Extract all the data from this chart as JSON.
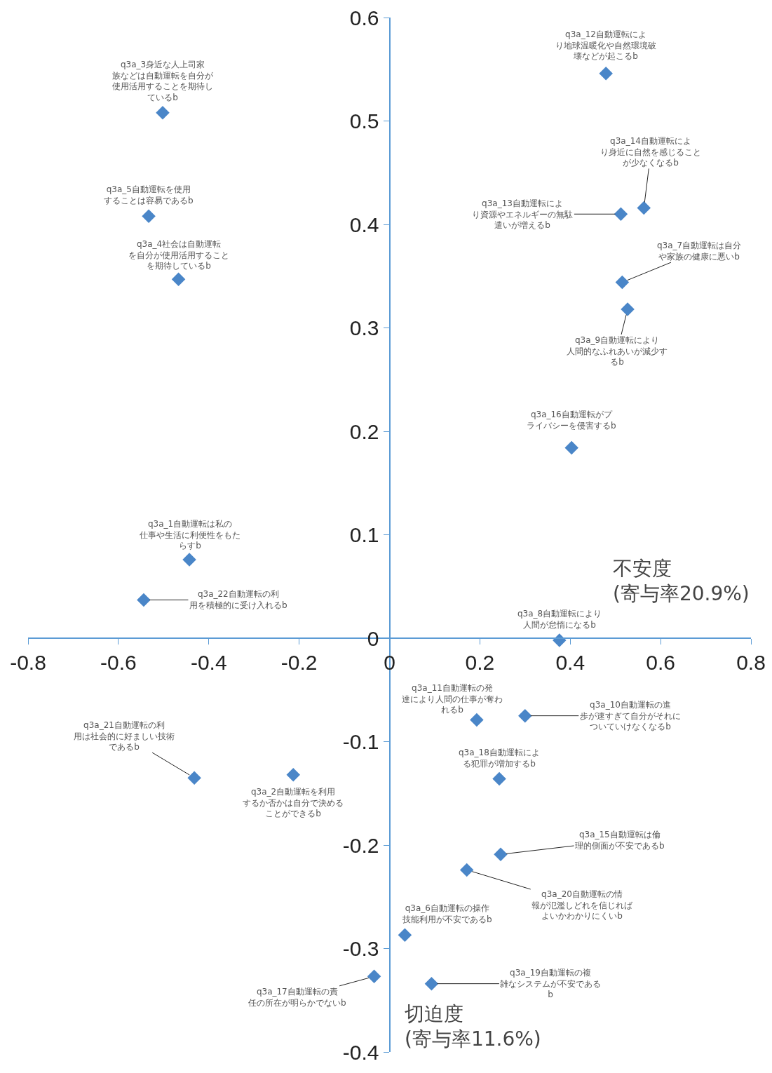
{
  "chart_data": {
    "type": "scatter",
    "xlabel": "不安度 (寄与率20.9%)",
    "ylabel": "切迫度 (寄与率11.6%)",
    "x": [
      -0.443,
      -0.213,
      -0.502,
      -0.467,
      -0.533,
      0.034,
      0.515,
      0.376,
      0.527,
      0.3,
      0.193,
      0.479,
      0.512,
      0.563,
      0.246,
      0.403,
      -0.034,
      0.243,
      0.093,
      0.171,
      -0.432,
      -0.544
    ],
    "series": [
      {
        "color": "#4a86c8",
        "values": [
          0.076,
          -0.132,
          0.508,
          0.347,
          0.408,
          -0.287,
          0.344,
          -0.002,
          0.318,
          -0.075,
          -0.079,
          0.546,
          0.41,
          0.416,
          -0.209,
          0.184,
          -0.327,
          -0.136,
          -0.334,
          -0.224,
          -0.135,
          0.037
        ]
      }
    ],
    "annotations": [
      {
        "text": "q3a_1自動運転は私の仕事や生活に利便性をもたらすb",
        "x": -0.443,
        "y": 0.076
      },
      {
        "text": "q3a_2自動運転を利用するか否かは自分で決めることができるb",
        "x": -0.213,
        "y": -0.132
      },
      {
        "text": "q3a_3身近な人上司家族などは自動運転を自分が使用活用することを期待しているb",
        "x": -0.502,
        "y": 0.508
      },
      {
        "text": "q3a_4社会は自動運転を自分が使用活用することを期待しているb",
        "x": -0.467,
        "y": 0.347
      },
      {
        "text": "q3a_5自動運転を使用することは容易であるb",
        "x": -0.533,
        "y": 0.408
      },
      {
        "text": "q3a_6自動運転の操作技能利用が不安であるb",
        "x": 0.034,
        "y": -0.287
      },
      {
        "text": "q3a_7自動運転は自分や家族の健康に悪いb",
        "x": 0.515,
        "y": 0.344
      },
      {
        "text": "q3a_8自動運転により人間が怠惰になるb",
        "x": 0.376,
        "y": -0.002
      },
      {
        "text": "q3a_9自動運転により人間的なふれあいが減少するb",
        "x": 0.527,
        "y": 0.318
      },
      {
        "text": "q3a_10自動運転の進歩が速すぎて自分がそれについていけなくなるb",
        "x": 0.3,
        "y": -0.075
      },
      {
        "text": "q3a_11自動運転の発達により人間の仕事が奪われるb",
        "x": 0.193,
        "y": -0.079
      },
      {
        "text": "q3a_12自動運転により地球温暖化や自然環境破壊などが起こるb",
        "x": 0.479,
        "y": 0.546
      },
      {
        "text": "q3a_13自動運転により資源やエネルギーの無駄遣いが増えるb",
        "x": 0.512,
        "y": 0.41
      },
      {
        "text": "q3a_14自動運転により身近に自然を感じることが少なくなるb",
        "x": 0.563,
        "y": 0.416
      },
      {
        "text": "q3a_15自動運転は倫理的側面が不安であるb",
        "x": 0.246,
        "y": -0.209
      },
      {
        "text": "q3a_16自動運転がプライバシーを侵害するb",
        "x": 0.403,
        "y": 0.184
      },
      {
        "text": "q3a_17自動運転の責任の所在が明らかでないb",
        "x": -0.034,
        "y": -0.327
      },
      {
        "text": "q3a_18自動運転による犯罪が増加するb",
        "x": 0.243,
        "y": -0.136
      },
      {
        "text": "q3a_19自動運転の複雑なシステムが不安であるb",
        "x": 0.093,
        "y": -0.334
      },
      {
        "text": "q3a_20自動運転の情報が氾濫しどれを信じればよいかわかりにくいb",
        "x": 0.171,
        "y": -0.224
      },
      {
        "text": "q3a_21自動運転の利用は社会的に好ましい技術であるb",
        "x": -0.432,
        "y": -0.135
      },
      {
        "text": "q3a_22自動運転の利用を積極的に受け入れるb",
        "x": -0.544,
        "y": 0.037
      }
    ],
    "xlim": [
      -0.8,
      0.8
    ],
    "xticks": [
      -0.8,
      -0.6,
      -0.4,
      -0.2,
      0,
      0.2,
      0.4,
      0.6,
      0.8
    ],
    "ylim": [
      -0.4,
      0.6
    ],
    "yticks": [
      -0.4,
      -0.3,
      -0.2,
      -0.1,
      0,
      0.1,
      0.2,
      0.3,
      0.4,
      0.5,
      0.6
    ],
    "marker": "diamond"
  }
}
